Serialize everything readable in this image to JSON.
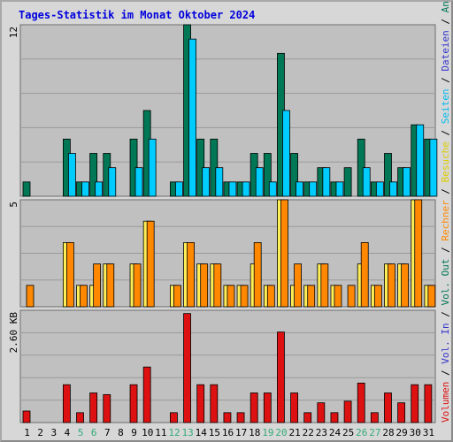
{
  "title": "Tages-Statistik im Monat Oktober 2024",
  "colors": {
    "background": "#c0c0c0",
    "frame": "#d7d7d7",
    "grid": "#9a9a9a",
    "title": "#0000dd",
    "dateien": "#007755",
    "seiten": "#00ccff",
    "besuche": "#ffee55",
    "rechner": "#ff8800",
    "volumen": "#dd1111",
    "label_blue": "#3333cc",
    "weekend": "#33aa77"
  },
  "right_labels": {
    "top": [
      {
        "text": "Anfragen",
        "color": "#007755"
      },
      {
        "text": " / ",
        "color": "#000000"
      },
      {
        "text": "Dateien",
        "color": "#3333cc"
      },
      {
        "text": " / ",
        "color": "#000000"
      },
      {
        "text": "Seiten",
        "color": "#00bbee"
      },
      {
        "text": " / ",
        "color": "#000000"
      },
      {
        "text": "Besuche",
        "color": "#ddcc00"
      },
      {
        "text": " / ",
        "color": "#000000"
      },
      {
        "text": "Rechner",
        "color": "#ff8800"
      },
      {
        "text": " / ",
        "color": "#000000"
      },
      {
        "text": "Vol. Out",
        "color": "#007755"
      },
      {
        "text": " / ",
        "color": "#000000"
      },
      {
        "text": "Vol. In",
        "color": "#3333cc"
      },
      {
        "text": " / ",
        "color": "#000000"
      },
      {
        "text": "Volumen",
        "color": "#dd1111"
      }
    ]
  },
  "chart_data": [
    {
      "type": "bar",
      "panel": "Anfragen / Dateien / Seiten",
      "y_label": "12",
      "ylim": [
        0,
        12
      ],
      "x": [
        "1",
        "2",
        "3",
        "4",
        "5",
        "6",
        "7",
        "8",
        "9",
        "10",
        "11",
        "12",
        "13",
        "14",
        "15",
        "16",
        "17",
        "18",
        "19",
        "20",
        "21",
        "22",
        "23",
        "24",
        "25",
        "26",
        "27",
        "28",
        "29",
        "30",
        "31"
      ],
      "series": [
        {
          "name": "Anfragen",
          "values": [
            1,
            0,
            0,
            4,
            1,
            3,
            3,
            0,
            4,
            6,
            0,
            1,
            12,
            4,
            4,
            1,
            1,
            3,
            3,
            10,
            3,
            1,
            2,
            1,
            2,
            4,
            1,
            3,
            2,
            5,
            4
          ]
        },
        {
          "name": "Dateien",
          "values": [
            0,
            0,
            0,
            3,
            1,
            1,
            2,
            0,
            2,
            4,
            0,
            1,
            11,
            2,
            2,
            1,
            1,
            2,
            1,
            6,
            1,
            1,
            2,
            1,
            0,
            2,
            1,
            1,
            2,
            5,
            4
          ]
        },
        {
          "name": "Seiten",
          "values": [
            0,
            0,
            0,
            3,
            1,
            1,
            2,
            0,
            2,
            4,
            0,
            1,
            11,
            2,
            2,
            1,
            1,
            2,
            1,
            6,
            1,
            1,
            2,
            1,
            0,
            2,
            1,
            1,
            2,
            5,
            4
          ]
        }
      ]
    },
    {
      "type": "bar",
      "panel": "Besuche / Rechner",
      "y_label": "5",
      "ylim": [
        0,
        5
      ],
      "x": [
        "1",
        "2",
        "3",
        "4",
        "5",
        "6",
        "7",
        "8",
        "9",
        "10",
        "11",
        "12",
        "13",
        "14",
        "15",
        "16",
        "17",
        "18",
        "19",
        "20",
        "21",
        "22",
        "23",
        "24",
        "25",
        "26",
        "27",
        "28",
        "29",
        "30",
        "31"
      ],
      "series": [
        {
          "name": "Besuche",
          "values": [
            0,
            0,
            0,
            3,
            1,
            1,
            2,
            0,
            2,
            4,
            0,
            1,
            3,
            2,
            2,
            1,
            1,
            2,
            1,
            5,
            1,
            1,
            2,
            1,
            0,
            2,
            1,
            2,
            2,
            5,
            1
          ]
        },
        {
          "name": "Rechner",
          "values": [
            1,
            0,
            0,
            3,
            1,
            2,
            2,
            0,
            2,
            4,
            0,
            1,
            3,
            2,
            2,
            1,
            1,
            3,
            1,
            5,
            2,
            1,
            2,
            1,
            1,
            3,
            1,
            2,
            2,
            5,
            1
          ]
        }
      ]
    },
    {
      "type": "bar",
      "panel": "Volumen",
      "y_label": "2.60 KB",
      "ylim": [
        0,
        2.6
      ],
      "x": [
        "1",
        "2",
        "3",
        "4",
        "5",
        "6",
        "7",
        "8",
        "9",
        "10",
        "11",
        "12",
        "13",
        "14",
        "15",
        "16",
        "17",
        "18",
        "19",
        "20",
        "21",
        "22",
        "23",
        "24",
        "25",
        "26",
        "27",
        "28",
        "29",
        "30",
        "31"
      ],
      "series": [
        {
          "name": "Volumen",
          "values": [
            0.28,
            0,
            0,
            0.92,
            0.24,
            0.72,
            0.68,
            0,
            0.92,
            1.35,
            0,
            0.24,
            2.65,
            0.92,
            0.92,
            0.24,
            0.24,
            0.72,
            0.72,
            2.2,
            0.72,
            0.24,
            0.48,
            0.24,
            0.52,
            0.96,
            0.24,
            0.72,
            0.48,
            0.92,
            0.92
          ]
        }
      ]
    }
  ],
  "weekend_days": [
    "5",
    "6",
    "12",
    "13",
    "19",
    "20",
    "26",
    "27"
  ]
}
